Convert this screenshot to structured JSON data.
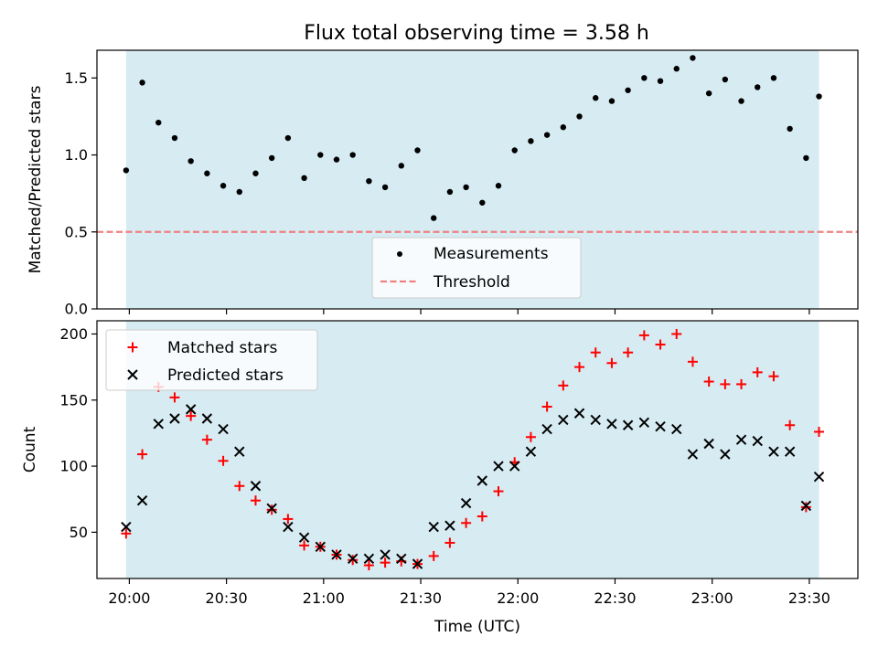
{
  "title": "Flux total observing time = 3.58 h",
  "x_axis": {
    "label": "Time (UTC)",
    "tick_labels": [
      "20:00",
      "20:30",
      "21:00",
      "21:30",
      "22:00",
      "22:30",
      "23:00",
      "23:30"
    ],
    "tick_minutes": [
      0,
      30,
      60,
      90,
      120,
      150,
      180,
      210
    ],
    "range_minutes": [
      -10,
      225
    ],
    "time_origin": "20:00"
  },
  "colors": {
    "shade": "#add8e6",
    "measurement": "#000000",
    "threshold": "#f08080",
    "matched": "#ff0000",
    "predicted": "#000000"
  },
  "chart_data": [
    {
      "type": "scatter",
      "ylabel": "Matched/Predicted stars",
      "ylim": [
        0,
        1.68
      ],
      "yticks": [
        "0.0",
        "0.5",
        "1.0",
        "1.5"
      ],
      "ytick_values": [
        0,
        0.5,
        1.0,
        1.5
      ],
      "shaded_span_minutes": [
        -1,
        213
      ],
      "threshold": 0.5,
      "legend": {
        "placement": "lower-center",
        "entries": [
          "Measurements",
          "Threshold"
        ]
      },
      "x_minutes": [
        -1,
        4,
        9,
        14,
        19,
        24,
        29,
        34,
        39,
        44,
        49,
        54,
        59,
        64,
        69,
        74,
        79,
        84,
        89,
        94,
        99,
        104,
        109,
        114,
        119,
        124,
        129,
        134,
        139,
        144,
        149,
        154,
        159,
        164,
        169,
        174,
        179,
        184,
        189,
        194,
        199,
        204,
        209,
        213
      ],
      "ratio": [
        0.9,
        1.47,
        1.21,
        1.11,
        0.96,
        0.88,
        0.8,
        0.76,
        0.88,
        0.98,
        1.11,
        0.85,
        1.0,
        0.97,
        1.0,
        0.83,
        0.79,
        0.93,
        1.03,
        0.59,
        0.76,
        0.79,
        0.69,
        0.8,
        1.03,
        1.09,
        1.13,
        1.18,
        1.25,
        1.37,
        1.35,
        1.42,
        1.5,
        1.48,
        1.56,
        1.63,
        1.4,
        1.49,
        1.35,
        1.44,
        1.5,
        1.17,
        0.98,
        1.38
      ]
    },
    {
      "type": "scatter",
      "ylabel": "Count",
      "ylim": [
        15,
        210
      ],
      "yticks": [
        "50",
        "100",
        "150",
        "200"
      ],
      "ytick_values": [
        50,
        100,
        150,
        200
      ],
      "shaded_span_minutes": [
        -1,
        213
      ],
      "legend": {
        "placement": "top-left",
        "entries": [
          "Matched stars",
          "Predicted stars"
        ]
      },
      "x_minutes": [
        -1,
        4,
        9,
        14,
        19,
        24,
        29,
        34,
        39,
        44,
        49,
        54,
        59,
        64,
        69,
        74,
        79,
        84,
        89,
        94,
        99,
        104,
        109,
        114,
        119,
        124,
        129,
        134,
        139,
        144,
        149,
        154,
        159,
        164,
        169,
        174,
        179,
        184,
        189,
        194,
        199,
        204,
        209,
        213
      ],
      "series": [
        {
          "name": "Matched stars",
          "marker": "plus",
          "values": [
            49,
            109,
            160,
            152,
            138,
            120,
            104,
            85,
            74,
            67,
            60,
            40,
            39,
            33,
            29,
            25,
            27,
            28,
            26,
            32,
            42,
            57,
            62,
            81,
            103,
            122,
            145,
            161,
            175,
            186,
            178,
            186,
            199,
            192,
            200,
            179,
            164,
            162,
            162,
            171,
            168,
            131,
            69,
            126
          ]
        },
        {
          "name": "Predicted stars",
          "marker": "x",
          "values": [
            54,
            74,
            132,
            136,
            143,
            136,
            128,
            111,
            85,
            68,
            54,
            46,
            39,
            33,
            30,
            30,
            33,
            30,
            26,
            54,
            55,
            72,
            89,
            100,
            100,
            111,
            128,
            135,
            140,
            135,
            132,
            131,
            133,
            130,
            128,
            109,
            117,
            109,
            120,
            119,
            111,
            111,
            70,
            92
          ]
        }
      ]
    }
  ]
}
